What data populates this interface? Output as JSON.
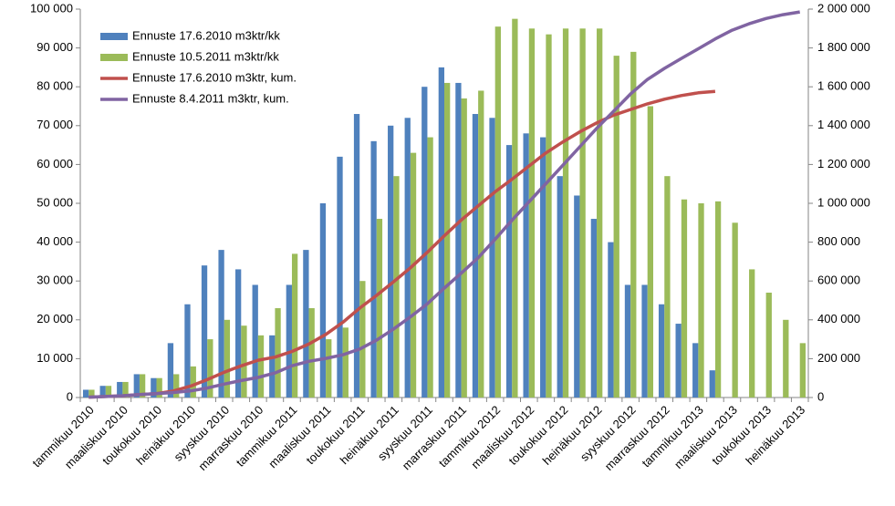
{
  "chart_data": {
    "type": "bar",
    "categories": [
      "tammikuu 2010",
      null,
      "maaliskuu 2010",
      null,
      "toukokuu 2010",
      null,
      "heinäkuu 2010",
      null,
      "syyskuu 2010",
      null,
      "marraskuu 2010",
      null,
      "tammikuu 2011",
      null,
      "maaliskuu 2011",
      null,
      "toukokuu 2011",
      null,
      "heinäkuu 2011",
      null,
      "syyskuu 2011",
      null,
      "marraskuu 2011",
      null,
      "tammikuu 2012",
      null,
      "maaliskuu 2012",
      null,
      "toukokuu 2012",
      null,
      "heinäkuu 2012",
      null,
      "syyskuu 2012",
      null,
      "marraskuu 2012",
      null,
      "tammikuu 2013",
      null,
      "maaliskuu 2013",
      null,
      "toukokuu 2013",
      null,
      "heinäkuu 2013"
    ],
    "series": [
      {
        "name": "Ennuste 17.6.2010 m3ktr/kk",
        "type": "bar",
        "color": "#4f81bd",
        "values": [
          2000,
          3000,
          4000,
          6000,
          5000,
          14000,
          24000,
          34000,
          38000,
          33000,
          29000,
          16000,
          29000,
          38000,
          50000,
          62000,
          73000,
          66000,
          70000,
          72000,
          80000,
          85000,
          81000,
          73000,
          72000,
          65000,
          68000,
          67000,
          57000,
          52000,
          46000,
          40000,
          29000,
          29000,
          24000,
          19000,
          14000,
          7000,
          null,
          null,
          null,
          null,
          null
        ]
      },
      {
        "name": "Ennuste 10.5.2011 m3ktr/kk",
        "type": "bar",
        "color": "#9bbb59",
        "values": [
          2000,
          3000,
          4000,
          6000,
          5000,
          6000,
          8000,
          15000,
          20000,
          18500,
          16000,
          23000,
          37000,
          23000,
          15000,
          18000,
          30000,
          46000,
          57000,
          63000,
          67000,
          81000,
          77000,
          79000,
          95500,
          97500,
          95000,
          93500,
          95000,
          95000,
          95000,
          88000,
          89000,
          75000,
          57000,
          51000,
          50000,
          50500,
          45000,
          33000,
          27000,
          20000,
          14000
        ]
      },
      {
        "name": "Ennuste 17.6.2010 m3ktr, kum.",
        "type": "line",
        "axis": "y2",
        "color": "#c0504d",
        "values": [
          2000,
          5000,
          9000,
          15000,
          20000,
          34000,
          58000,
          92000,
          130000,
          163000,
          192000,
          208000,
          237000,
          275000,
          325000,
          387000,
          460000,
          526000,
          596000,
          668000,
          748000,
          833000,
          914000,
          987000,
          1059000,
          1124000,
          1192000,
          1259000,
          1316000,
          1368000,
          1414000,
          1454000,
          1483000,
          1512000,
          1536000,
          1555000,
          1569000,
          1576000,
          null,
          null,
          null,
          null,
          null
        ]
      },
      {
        "name": "Ennuste 8.4.2011 m3ktr, kum.",
        "type": "line",
        "axis": "y2",
        "color": "#8064a2",
        "values": [
          2000,
          5000,
          9000,
          15000,
          20000,
          26000,
          34000,
          49000,
          69000,
          87500,
          103500,
          126500,
          163500,
          186500,
          201500,
          219500,
          249500,
          295500,
          352500,
          415500,
          482500,
          563500,
          640500,
          719500,
          815000,
          912500,
          1007500,
          1101000,
          1196000,
          1291000,
          1386000,
          1474000,
          1563000,
          1638000,
          1695000,
          1746000,
          1796000,
          1846500,
          1891500,
          1924500,
          1951500,
          1971500,
          1985500
        ]
      }
    ],
    "ylim": [
      0,
      100000
    ],
    "yticks": [
      0,
      {
        "value": 10000,
        "label": "10 000"
      },
      {
        "value": 20000,
        "label": "20 000"
      },
      {
        "value": 30000,
        "label": "30 000"
      },
      {
        "value": 40000,
        "label": "40 000"
      },
      {
        "value": 50000,
        "label": "50 000"
      },
      {
        "value": 60000,
        "label": "60 000"
      },
      {
        "value": 70000,
        "label": "70 000"
      },
      {
        "value": 80000,
        "label": "80 000"
      },
      {
        "value": 90000,
        "label": "90 000"
      },
      {
        "value": 100000,
        "label": "100 000"
      }
    ],
    "y2lim": [
      0,
      2000000
    ],
    "y2ticks": [
      0,
      {
        "value": 200000,
        "label": "200 000"
      },
      {
        "value": 400000,
        "label": "400 000"
      },
      {
        "value": 600000,
        "label": "600 000"
      },
      {
        "value": 800000,
        "label": "800 000"
      },
      {
        "value": 1000000,
        "label": "1 000 000"
      },
      {
        "value": 1200000,
        "label": "1 200 000"
      },
      {
        "value": 1400000,
        "label": "1 400 000"
      },
      {
        "value": 1600000,
        "label": "1 600 000"
      },
      {
        "value": 1800000,
        "label": "1 800 000"
      },
      {
        "value": 2000000,
        "label": "2 000 000"
      }
    ],
    "grid": false,
    "legend": "top-left"
  }
}
